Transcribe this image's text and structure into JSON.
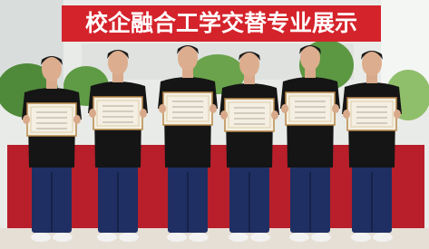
{
  "banner": {
    "text": "校企融合工学交替专业展示"
  }
}
